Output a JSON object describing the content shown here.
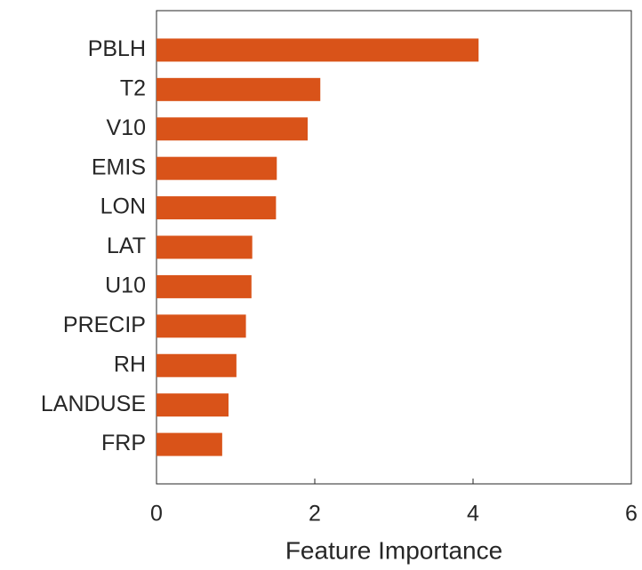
{
  "chart_data": {
    "type": "barh",
    "x_label": "Feature Importance",
    "categories": [
      "PBLH",
      "T2",
      "V10",
      "EMIS",
      "LON",
      "LAT",
      "U10",
      "PRECIP",
      "RH",
      "LANDUSE",
      "FRP"
    ],
    "values": [
      4.07,
      2.07,
      1.91,
      1.52,
      1.51,
      1.21,
      1.2,
      1.13,
      1.01,
      0.91,
      0.83
    ],
    "color": "#d95319",
    "xlim": [
      0,
      6
    ],
    "xticks": [
      0,
      2,
      4,
      6
    ],
    "grid": false
  }
}
